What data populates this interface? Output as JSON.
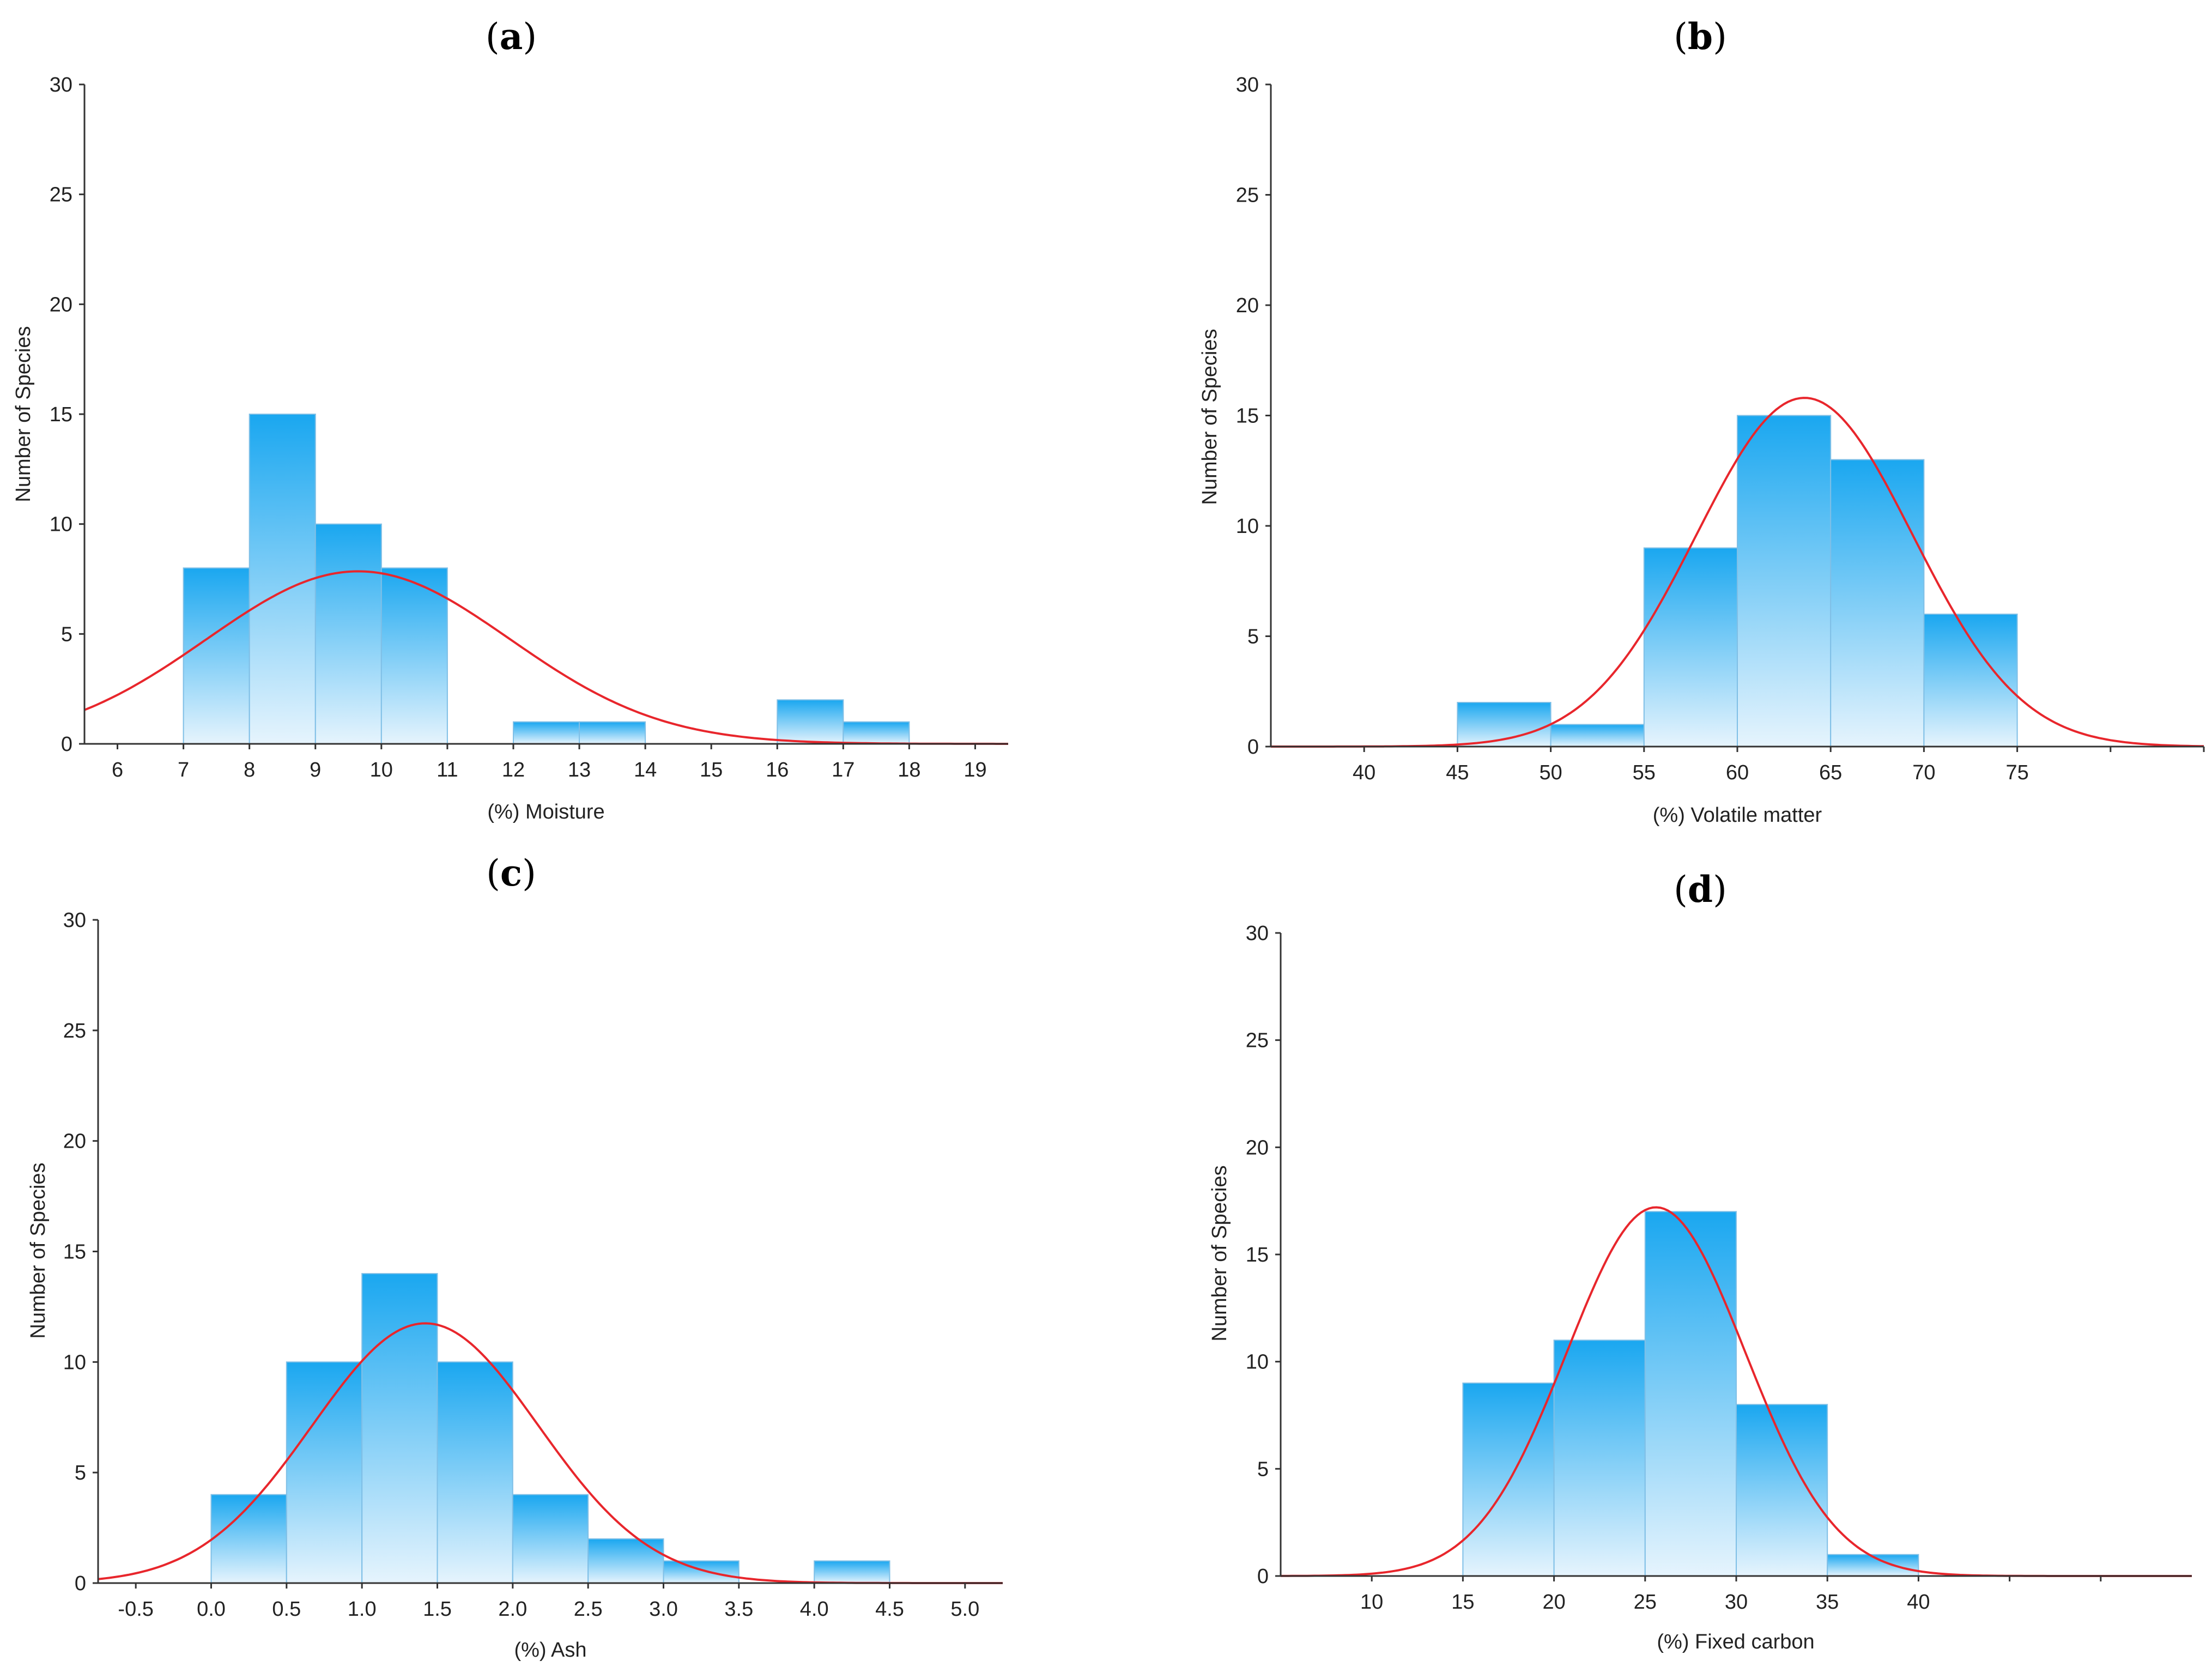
{
  "figure": {
    "bar_color_top": "#1aa7f0",
    "bar_color_bottom": "#e6f4fd",
    "curve_color": "#e8262c"
  },
  "chart_data": [
    {
      "id": "a",
      "panel_label": "a",
      "type": "bar",
      "subtype": "histogram",
      "xlabel": "(%) Moisture",
      "ylabel": "Number of Species",
      "xlim": [
        5.5,
        19.5
      ],
      "ylim": [
        0,
        30
      ],
      "xticks": [
        6,
        7,
        8,
        9,
        10,
        11,
        12,
        13,
        14,
        15,
        16,
        17,
        18,
        19
      ],
      "xtick_labels": [
        "6",
        "7",
        "8",
        "9",
        "10",
        "11",
        "12",
        "13",
        "14",
        "15",
        "16",
        "17",
        "18",
        "19"
      ],
      "yticks": [
        0,
        5,
        10,
        15,
        20,
        25,
        30
      ],
      "ytick_labels": [
        "0",
        "5",
        "10",
        "15",
        "20",
        "25",
        "30"
      ],
      "bins": [
        [
          7,
          8
        ],
        [
          8,
          9
        ],
        [
          9,
          10
        ],
        [
          10,
          11
        ],
        [
          11,
          12
        ],
        [
          12,
          13
        ],
        [
          13,
          14
        ],
        [
          14,
          15
        ],
        [
          15,
          16
        ],
        [
          16,
          17
        ],
        [
          17,
          18
        ]
      ],
      "values": [
        8,
        15,
        10,
        8,
        0,
        1,
        1,
        0,
        0,
        2,
        1
      ],
      "normal_fit": {
        "mean": 9.65,
        "sd": 2.3,
        "peak": 7.85
      }
    },
    {
      "id": "b",
      "panel_label": "b",
      "type": "bar",
      "subtype": "histogram",
      "xlabel": "(%) Volatile matter",
      "ylabel": "Number of Species",
      "xlim": [
        35,
        85
      ],
      "ylim": [
        0,
        30
      ],
      "xticks": [
        40,
        45,
        50,
        55,
        60,
        65,
        70,
        75,
        80,
        85
      ],
      "xtick_labels": [
        "40",
        "45",
        "50",
        "55",
        "60",
        "65",
        "70",
        "75",
        "",
        ""
      ],
      "yticks": [
        0,
        5,
        10,
        15,
        20,
        25,
        30
      ],
      "ytick_labels": [
        "0",
        "5",
        "10",
        "15",
        "20",
        "25",
        "30"
      ],
      "bins": [
        [
          45,
          50
        ],
        [
          50,
          55
        ],
        [
          55,
          60
        ],
        [
          60,
          65
        ],
        [
          65,
          70
        ],
        [
          70,
          75
        ]
      ],
      "values": [
        2,
        1,
        9,
        15,
        13,
        6
      ],
      "normal_fit": {
        "mean": 63.6,
        "sd": 5.8,
        "peak": 15.8
      }
    },
    {
      "id": "c",
      "panel_label": "c",
      "type": "bar",
      "subtype": "histogram",
      "xlabel": "(%) Ash",
      "ylabel": "Number of Species",
      "xlim": [
        -0.75,
        5.25
      ],
      "ylim": [
        0,
        30
      ],
      "xticks": [
        -0.5,
        0.0,
        0.5,
        1.0,
        1.5,
        2.0,
        2.5,
        3.0,
        3.5,
        4.0,
        4.5,
        5.0
      ],
      "xtick_labels": [
        "-0.5",
        "0.0",
        "0.5",
        "1.0",
        "1.5",
        "2.0",
        "2.5",
        "3.0",
        "3.5",
        "4.0",
        "4.5",
        "5.0"
      ],
      "yticks": [
        0,
        5,
        10,
        15,
        20,
        25,
        30
      ],
      "ytick_labels": [
        "0",
        "5",
        "10",
        "15",
        "20",
        "25",
        "30"
      ],
      "bins": [
        [
          0.0,
          0.5
        ],
        [
          0.5,
          1.0
        ],
        [
          1.0,
          1.5
        ],
        [
          1.5,
          2.0
        ],
        [
          2.0,
          2.5
        ],
        [
          2.5,
          3.0
        ],
        [
          3.0,
          3.5
        ],
        [
          3.5,
          4.0
        ],
        [
          4.0,
          4.5
        ]
      ],
      "values": [
        4,
        10,
        14,
        10,
        4,
        2,
        1,
        0,
        1
      ],
      "normal_fit": {
        "mean": 1.42,
        "sd": 0.75,
        "peak": 11.75
      }
    },
    {
      "id": "d",
      "panel_label": "d",
      "type": "bar",
      "subtype": "histogram",
      "xlabel": "(%) Fixed carbon",
      "ylabel": "Number of Species",
      "xlim": [
        5,
        55
      ],
      "ylim": [
        0,
        30
      ],
      "xticks": [
        10,
        15,
        20,
        25,
        30,
        35,
        40,
        45,
        50
      ],
      "xtick_labels": [
        "10",
        "15",
        "20",
        "25",
        "30",
        "35",
        "40",
        "",
        ""
      ],
      "yticks": [
        0,
        5,
        10,
        15,
        20,
        25,
        30
      ],
      "ytick_labels": [
        "0",
        "5",
        "10",
        "15",
        "20",
        "25",
        "30"
      ],
      "bins": [
        [
          15,
          20
        ],
        [
          20,
          25
        ],
        [
          25,
          30
        ],
        [
          30,
          35
        ],
        [
          35,
          40
        ]
      ],
      "values": [
        9,
        11,
        17,
        8,
        1
      ],
      "normal_fit": {
        "mean": 25.6,
        "sd": 4.9,
        "peak": 17.2
      }
    }
  ]
}
